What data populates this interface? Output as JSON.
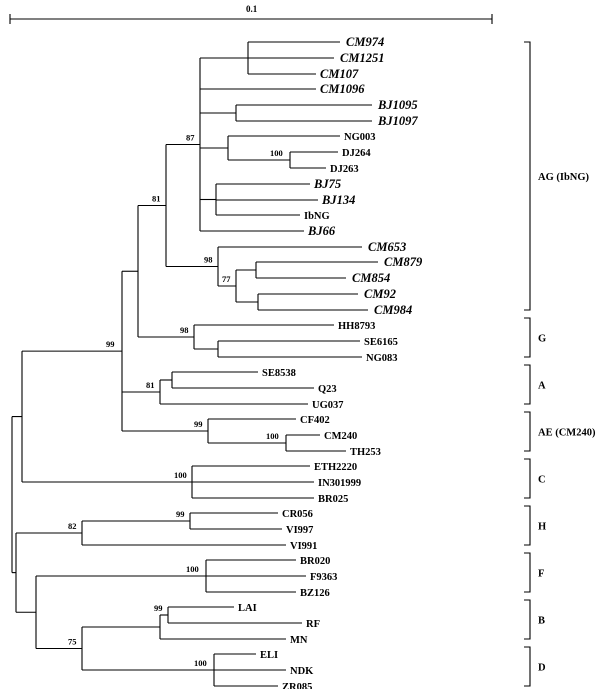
{
  "scale_bar": {
    "label": "0.1"
  },
  "taxa": [
    {
      "name": "CM974",
      "italic": true
    },
    {
      "name": "CM1251",
      "italic": true
    },
    {
      "name": "CM107",
      "italic": true
    },
    {
      "name": "CM1096",
      "italic": true
    },
    {
      "name": "BJ1095",
      "italic": true
    },
    {
      "name": "BJ1097",
      "italic": true
    },
    {
      "name": "NG003",
      "italic": false
    },
    {
      "name": "DJ264",
      "italic": false
    },
    {
      "name": "DJ263",
      "italic": false
    },
    {
      "name": "BJ75",
      "italic": true
    },
    {
      "name": "BJ134",
      "italic": true
    },
    {
      "name": "IbNG",
      "italic": false
    },
    {
      "name": "BJ66",
      "italic": true
    },
    {
      "name": "CM653",
      "italic": true
    },
    {
      "name": "CM879",
      "italic": true
    },
    {
      "name": "CM854",
      "italic": true
    },
    {
      "name": "CM92",
      "italic": true
    },
    {
      "name": "CM984",
      "italic": true
    },
    {
      "name": "HH8793",
      "italic": false
    },
    {
      "name": "SE6165",
      "italic": false
    },
    {
      "name": "NG083",
      "italic": false
    },
    {
      "name": "SE8538",
      "italic": false
    },
    {
      "name": "Q23",
      "italic": false
    },
    {
      "name": "UG037",
      "italic": false
    },
    {
      "name": "CF402",
      "italic": false
    },
    {
      "name": "CM240",
      "italic": false
    },
    {
      "name": "TH253",
      "italic": false
    },
    {
      "name": "ETH2220",
      "italic": false
    },
    {
      "name": "IN301999",
      "italic": false
    },
    {
      "name": "BR025",
      "italic": false
    },
    {
      "name": "CR056",
      "italic": false
    },
    {
      "name": "VI997",
      "italic": false
    },
    {
      "name": "VI991",
      "italic": false
    },
    {
      "name": "BR020",
      "italic": false
    },
    {
      "name": "F9363",
      "italic": false
    },
    {
      "name": "BZ126",
      "italic": false
    },
    {
      "name": "LAI",
      "italic": false
    },
    {
      "name": "RF",
      "italic": false
    },
    {
      "name": "MN",
      "italic": false
    },
    {
      "name": "ELI",
      "italic": false
    },
    {
      "name": "NDK",
      "italic": false
    },
    {
      "name": "ZR085",
      "italic": false
    }
  ],
  "bootstrap": [
    {
      "value": "100",
      "clade": "DJ264-DJ263"
    },
    {
      "value": "87",
      "clade": "AG core"
    },
    {
      "value": "81",
      "clade": "AG"
    },
    {
      "value": "98",
      "clade": "CM653 group"
    },
    {
      "value": "77",
      "clade": "CM879-CM984"
    },
    {
      "value": "99",
      "clade": "A/AE/AG/G"
    },
    {
      "value": "98",
      "clade": "G"
    },
    {
      "value": "81",
      "clade": "A"
    },
    {
      "value": "99",
      "clade": "AE"
    },
    {
      "value": "100",
      "clade": "CM240-TH253"
    },
    {
      "value": "100",
      "clade": "C"
    },
    {
      "value": "99",
      "clade": "CR056-VI997"
    },
    {
      "value": "82",
      "clade": "H"
    },
    {
      "value": "100",
      "clade": "F"
    },
    {
      "value": "99",
      "clade": "LAI-RF"
    },
    {
      "value": "100",
      "clade": "D"
    },
    {
      "value": "75",
      "clade": "B/D"
    }
  ],
  "groups": [
    {
      "label": "AG (IbNG)"
    },
    {
      "label": "G"
    },
    {
      "label": "A"
    },
    {
      "label": "AE (CM240)"
    },
    {
      "label": "C"
    },
    {
      "label": "H"
    },
    {
      "label": "F"
    },
    {
      "label": "B"
    },
    {
      "label": "D"
    }
  ]
}
